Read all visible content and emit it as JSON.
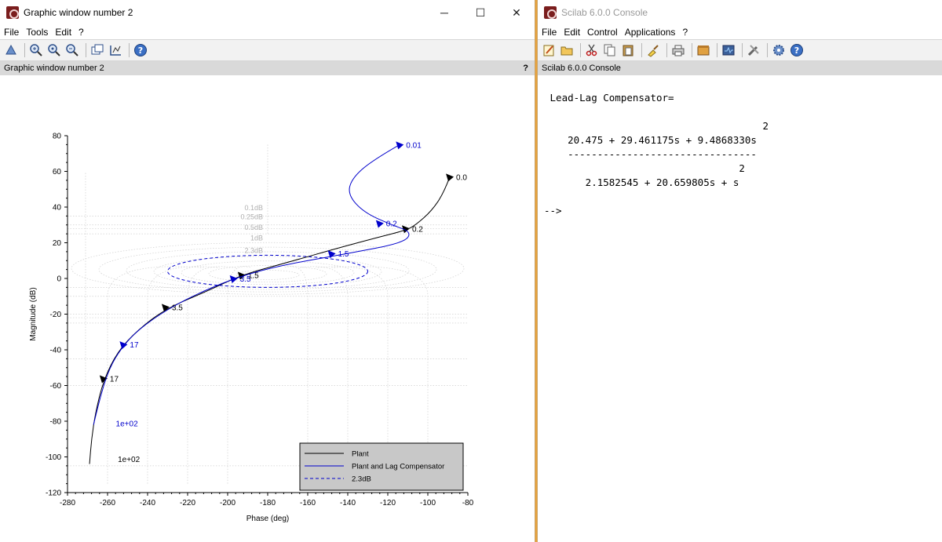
{
  "graphic_window": {
    "title": "Graphic window number 2",
    "controls": {
      "minimize": "─",
      "maximize": "☐",
      "close": "✕"
    },
    "menu": [
      "File",
      "Tools",
      "Edit",
      "?"
    ],
    "toolbar_icons": [
      "rotate-icon",
      "zoom-in-icon",
      "zoom-reset-icon",
      "zoom-out-icon",
      "datatips-icon",
      "axes-editor-icon",
      "help-icon"
    ],
    "dock_title": "Graphic window number 2",
    "dock_help": "?"
  },
  "console_window": {
    "title": "Scilab 6.0.0 Console",
    "menu": [
      "File",
      "Edit",
      "Control",
      "Applications",
      "?"
    ],
    "toolbar_icons": [
      "editor-icon",
      "open-icon",
      "cut-icon",
      "copy-icon",
      "paste-icon",
      "clear-icon",
      "print-icon",
      "module-icon",
      "xcos-icon",
      "tools-icon",
      "settings-icon",
      "help-icon"
    ],
    "dock_title": "Scilab 6.0.0 Console",
    "lines": [
      " Lead-Lag Compensator=",
      "",
      "                                     2",
      "    20.475 + 29.461175s + 9.4868330s",
      "    --------------------------------",
      "                                 2",
      "       2.1582545 + 20.659805s + s",
      "",
      "-->"
    ]
  },
  "chart_data": {
    "type": "line",
    "title": "",
    "xlabel": "Phase (deg)",
    "ylabel": "Magnitude (dB)",
    "xlim": [
      -280,
      -80
    ],
    "ylim": [
      -120,
      80
    ],
    "xticks": [
      -280,
      -260,
      -240,
      -220,
      -200,
      -180,
      -160,
      -140,
      -120,
      -100,
      -80
    ],
    "yticks": [
      -120,
      -100,
      -80,
      -60,
      -40,
      -20,
      0,
      20,
      40,
      60,
      80
    ],
    "nichols_grid_labels": [
      "0.1dB",
      "0.25dB",
      "0.5dB",
      "1dB",
      "2.3dB"
    ],
    "legend_position": "bottom-right",
    "series": [
      {
        "name": "Plant",
        "color": "#000000",
        "points": [
          [
            -89,
            57
          ],
          [
            -92,
            48
          ],
          [
            -98,
            38
          ],
          [
            -106,
            30
          ],
          [
            -111,
            27
          ],
          [
            -125,
            23
          ],
          [
            -145,
            17
          ],
          [
            -170,
            9
          ],
          [
            -193,
            2
          ],
          [
            -210,
            -7
          ],
          [
            -231,
            -17
          ],
          [
            -245,
            -29
          ],
          [
            -255,
            -41
          ],
          [
            -262,
            -57
          ],
          [
            -266,
            -75
          ],
          [
            -268,
            -90
          ],
          [
            -269,
            -104
          ]
        ],
        "markers": [
          {
            "x": -89,
            "y": 57,
            "label": "0.0"
          },
          {
            "x": -111,
            "y": 28,
            "label": "0.2"
          },
          {
            "x": -193,
            "y": 2,
            "label": "1.5"
          },
          {
            "x": -231,
            "y": -16,
            "label": "3.5"
          },
          {
            "x": -262,
            "y": -56,
            "label": "17"
          },
          {
            "x": -258,
            "y": -101,
            "label": "1e+02"
          }
        ]
      },
      {
        "name": "Plant and Lag Compensator",
        "color": "#0000cc",
        "points": [
          [
            -114,
            75
          ],
          [
            -128,
            66
          ],
          [
            -138,
            56
          ],
          [
            -140,
            47
          ],
          [
            -132,
            37
          ],
          [
            -118,
            30
          ],
          [
            -108,
            26
          ],
          [
            -112,
            20
          ],
          [
            -140,
            14
          ],
          [
            -175,
            7
          ],
          [
            -197,
            0
          ],
          [
            -218,
            -10
          ],
          [
            -234,
            -20
          ],
          [
            -247,
            -31
          ],
          [
            -255,
            -42
          ],
          [
            -260,
            -53
          ],
          [
            -264,
            -68
          ],
          [
            -267,
            -82
          ]
        ],
        "markers": [
          {
            "x": -114,
            "y": 75,
            "label": "0.01"
          },
          {
            "x": -124,
            "y": 31,
            "label": "0.2"
          },
          {
            "x": -148,
            "y": 14,
            "label": "1.5"
          },
          {
            "x": -197,
            "y": 0,
            "label": "3.5"
          },
          {
            "x": -252,
            "y": -37,
            "label": "17"
          },
          {
            "x": -259,
            "y": -81,
            "label": "1e+02"
          }
        ]
      },
      {
        "name": "2.3dB",
        "color": "#0000cc",
        "dashed": true,
        "ellipse": {
          "cx": -180,
          "cy": 4,
          "rx": 50,
          "ry": 9
        }
      }
    ]
  }
}
